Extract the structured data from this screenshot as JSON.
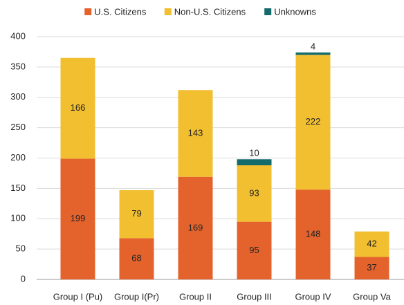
{
  "chart_data": {
    "type": "stacked_bar",
    "categories": [
      "Group I (Pu)",
      "Group I(Pr)",
      "Group II",
      "Group III",
      "Group IV",
      "Group Va"
    ],
    "series": [
      {
        "name": "U.S. Citizens",
        "color": "#e4632c",
        "values": [
          199,
          68,
          169,
          95,
          148,
          37
        ]
      },
      {
        "name": "Non-U.S. Citizens",
        "color": "#f2bf30",
        "values": [
          166,
          79,
          143,
          93,
          222,
          42
        ]
      },
      {
        "name": "Unknowns",
        "color": "#146b6b",
        "values": [
          null,
          null,
          null,
          10,
          4,
          null
        ]
      }
    ],
    "ylim": [
      0,
      400
    ],
    "yticks": [
      0,
      50,
      100,
      150,
      200,
      250,
      300,
      350,
      400
    ],
    "grid": true,
    "legend": "top"
  }
}
